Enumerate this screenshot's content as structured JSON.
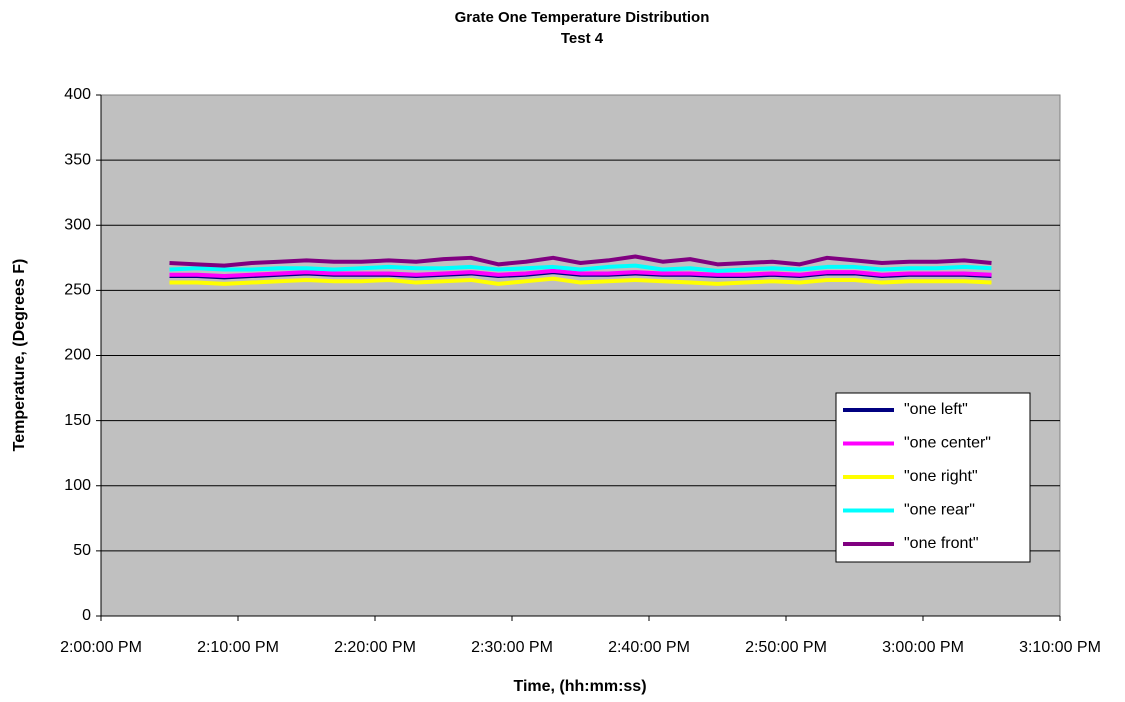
{
  "chart_data": {
    "type": "line",
    "title": "Grate One Temperature Distribution",
    "subtitle": "Test 4",
    "x_label": "Time, (hh:mm:ss)",
    "y_label": "Temperature, (Degrees F)",
    "x": [
      "2:05:00 PM",
      "2:07:00 PM",
      "2:09:00 PM",
      "2:11:00 PM",
      "2:13:00 PM",
      "2:15:00 PM",
      "2:17:00 PM",
      "2:19:00 PM",
      "2:21:00 PM",
      "2:23:00 PM",
      "2:25:00 PM",
      "2:27:00 PM",
      "2:29:00 PM",
      "2:31:00 PM",
      "2:33:00 PM",
      "2:35:00 PM",
      "2:37:00 PM",
      "2:39:00 PM",
      "2:41:00 PM",
      "2:43:00 PM",
      "2:45:00 PM",
      "2:47:00 PM",
      "2:49:00 PM",
      "2:51:00 PM",
      "2:53:00 PM",
      "2:55:00 PM",
      "2:57:00 PM",
      "2:59:00 PM",
      "3:01:00 PM",
      "3:03:00 PM",
      "3:05:00 PM"
    ],
    "series": [
      {
        "name": "\"one left\"",
        "color": "#000080",
        "values": [
          261,
          261,
          260,
          261,
          262,
          263,
          262,
          262,
          262,
          261,
          262,
          263,
          261,
          262,
          264,
          262,
          262,
          263,
          262,
          262,
          261,
          261,
          262,
          261,
          263,
          263,
          261,
          262,
          262,
          262,
          261
        ]
      },
      {
        "name": "\"one center\"",
        "color": "#ff00ff",
        "values": [
          262,
          262,
          261,
          262,
          263,
          264,
          263,
          263,
          263,
          262,
          263,
          264,
          262,
          263,
          265,
          263,
          263,
          264,
          263,
          263,
          262,
          262,
          263,
          262,
          264,
          264,
          262,
          263,
          263,
          263,
          262
        ]
      },
      {
        "name": "\"one right\"",
        "color": "#ffff00",
        "values": [
          256,
          256,
          255,
          256,
          257,
          258,
          257,
          257,
          258,
          256,
          257,
          258,
          255,
          257,
          259,
          256,
          257,
          258,
          257,
          256,
          255,
          256,
          257,
          256,
          258,
          258,
          256,
          257,
          257,
          257,
          256
        ]
      },
      {
        "name": "\"one rear\"",
        "color": "#00ffff",
        "values": [
          266,
          267,
          266,
          266,
          267,
          267,
          266,
          267,
          268,
          267,
          267,
          268,
          266,
          267,
          268,
          266,
          268,
          269,
          266,
          267,
          265,
          266,
          267,
          266,
          268,
          268,
          266,
          267,
          267,
          268,
          267
        ]
      },
      {
        "name": "\"one front\"",
        "color": "#800080",
        "values": [
          271,
          270,
          269,
          271,
          272,
          273,
          272,
          272,
          273,
          272,
          274,
          275,
          270,
          272,
          275,
          271,
          273,
          276,
          272,
          274,
          270,
          271,
          272,
          270,
          275,
          273,
          271,
          272,
          272,
          273,
          271
        ]
      }
    ],
    "xlim": [
      "2:00:00 PM",
      "3:10:00 PM"
    ],
    "xticks": [
      "2:00:00 PM",
      "2:10:00 PM",
      "2:20:00 PM",
      "2:30:00 PM",
      "2:40:00 PM",
      "2:50:00 PM",
      "3:00:00 PM",
      "3:10:00 PM"
    ],
    "ylim": [
      0,
      400
    ],
    "yticks": [
      0,
      50,
      100,
      150,
      200,
      250,
      300,
      350,
      400
    ],
    "grid": true,
    "legend_position": "right"
  }
}
